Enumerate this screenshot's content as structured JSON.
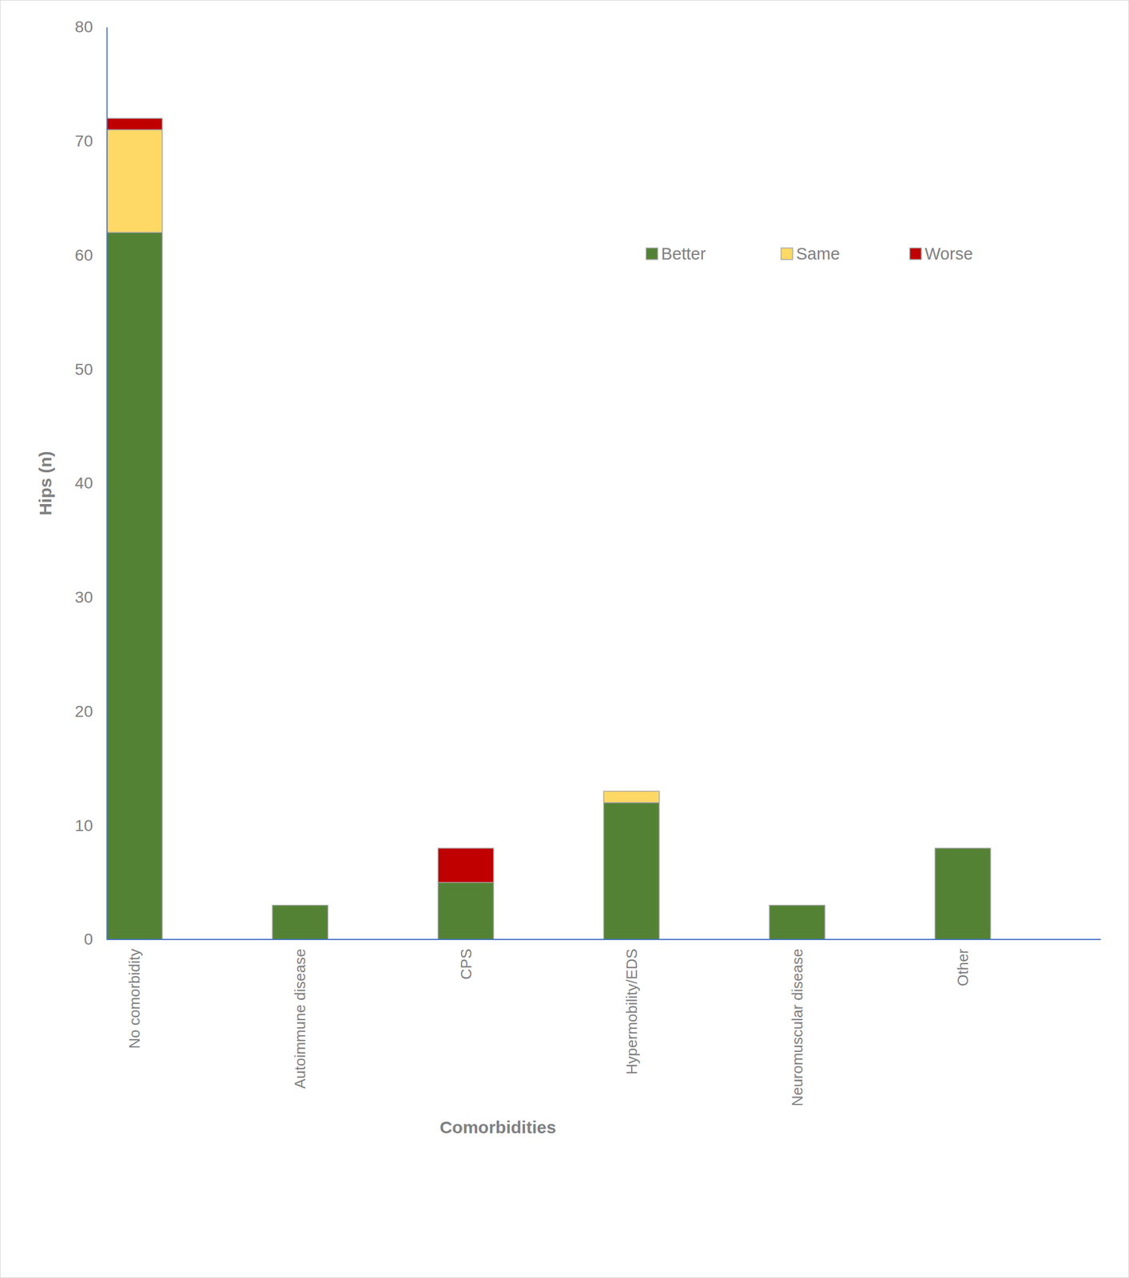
{
  "chart_data": {
    "type": "bar",
    "stacked": true,
    "x_label": "Comorbidities",
    "y_label": "Hips (n)",
    "categories": [
      "No comorbidity",
      "Autoimmune disease",
      "CPS",
      "Hypermobility/EDS",
      "Neuromuscular disease",
      "Other"
    ],
    "series": [
      {
        "name": "Better",
        "color": "#548235",
        "values": [
          62,
          3,
          5,
          12,
          3,
          8
        ]
      },
      {
        "name": "Same",
        "color": "#FFD966",
        "values": [
          9,
          0,
          0,
          1,
          0,
          0
        ]
      },
      {
        "name": "Worse",
        "color": "#C00000",
        "values": [
          1,
          0,
          3,
          0,
          0,
          0
        ]
      }
    ],
    "ylim": [
      0,
      80
    ],
    "yticks": [
      0,
      10,
      20,
      30,
      40,
      50,
      60,
      70,
      80
    ],
    "grid": false,
    "legend": "top-right"
  }
}
